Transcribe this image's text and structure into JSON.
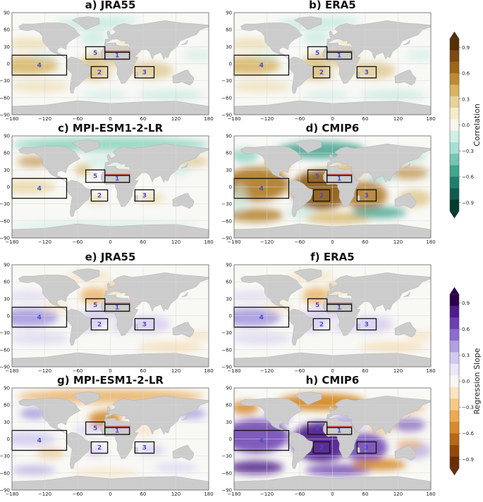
{
  "chart_data": {
    "type": "heatmap",
    "panels": [
      {
        "title": "a) JRA55",
        "field": "correlation",
        "dataset": "JRA55"
      },
      {
        "title": "b) ERA5",
        "field": "correlation",
        "dataset": "ERA5"
      },
      {
        "title": "c) MPI-ESM1-2-LR",
        "field": "correlation",
        "dataset": "MPI-ESM1-2-LR"
      },
      {
        "title": "d) CMIP6",
        "field": "correlation",
        "dataset": "CMIP6"
      },
      {
        "title": "e) JRA55",
        "field": "regression",
        "dataset": "JRA55"
      },
      {
        "title": "f) ERA5",
        "field": "regression",
        "dataset": "ERA5"
      },
      {
        "title": "g) MPI-ESM1-2-LR",
        "field": "regression",
        "dataset": "MPI-ESM1-2-LR"
      },
      {
        "title": "h) CMIP6",
        "field": "regression",
        "dataset": "CMIP6"
      }
    ],
    "x_ticks": [
      -180,
      -120,
      -60,
      0,
      60,
      120,
      180
    ],
    "x_tick_labels": [
      "−180",
      "−120",
      "−60",
      "0",
      "60",
      "120",
      "180"
    ],
    "y_ticks": [
      90,
      60,
      30,
      0,
      -30,
      -60,
      -90
    ],
    "y_tick_labels": [
      "90",
      "60",
      "30",
      "0",
      "−30",
      "−60",
      "−90"
    ],
    "xlim": [
      -180,
      180
    ],
    "ylim": [
      -90,
      90
    ],
    "grid": true,
    "regions": [
      {
        "id": "1",
        "lon": [
          -10,
          35
        ],
        "lat": [
          8,
          22
        ],
        "color": "#c0392b",
        "label": "1"
      },
      {
        "id": "2",
        "lon": [
          -35,
          -5
        ],
        "lat": [
          -25,
          -5
        ],
        "color": "#111111",
        "label": "2"
      },
      {
        "id": "3",
        "lon": [
          45,
          80
        ],
        "lat": [
          -25,
          -5
        ],
        "color": "#111111",
        "label": "3"
      },
      {
        "id": "4",
        "lon": [
          -180,
          -80
        ],
        "lat": [
          -20,
          15
        ],
        "color": "#111111",
        "label": "4"
      },
      {
        "id": "5",
        "lon": [
          -45,
          -10
        ],
        "lat": [
          8,
          30
        ],
        "color": "#111111",
        "label": "5"
      },
      {
        "id": "6",
        "lon": [
          -10,
          35
        ],
        "lat": [
          8,
          20
        ],
        "color": "#111111",
        "label": ""
      }
    ],
    "colorbars": [
      {
        "label": "Correlation",
        "ticks": [
          0.9,
          0.6,
          0.3,
          0.0,
          -0.3,
          -0.6,
          -0.9
        ],
        "tick_labels": [
          "0.9",
          "0.6",
          "0.3",
          "0.0",
          "−0.3",
          "−0.6",
          "−0.9"
        ],
        "colors_high_to_low": [
          "#543005",
          "#7f4a0f",
          "#a0651a",
          "#bf8a2f",
          "#d9b262",
          "#e9d299",
          "#f6eccb",
          "#f7f5ec",
          "#d0f0e6",
          "#a7e1d3",
          "#73c7b3",
          "#3fa68f",
          "#1f7f6c",
          "#0f5c4c",
          "#003c30"
        ]
      },
      {
        "label": "Regression Slope",
        "ticks": [
          0.9,
          0.6,
          0.3,
          0.0,
          -0.3,
          -0.6,
          -0.9
        ],
        "tick_labels": [
          "0.9",
          "0.6",
          "0.3",
          "0.0",
          "−0.3",
          "−0.6",
          "−0.9"
        ],
        "colors_high_to_low": [
          "#2d004b",
          "#4f1c8f",
          "#6d3fb3",
          "#8e6cd0",
          "#b1a0e3",
          "#d2caf0",
          "#ece8f8",
          "#f7f6f2",
          "#fbe5c1",
          "#f7ca85",
          "#ecaa52",
          "#d98a2c",
          "#b96816",
          "#93480a",
          "#6b2e04"
        ]
      }
    ],
    "land_color": "#cccccc"
  }
}
